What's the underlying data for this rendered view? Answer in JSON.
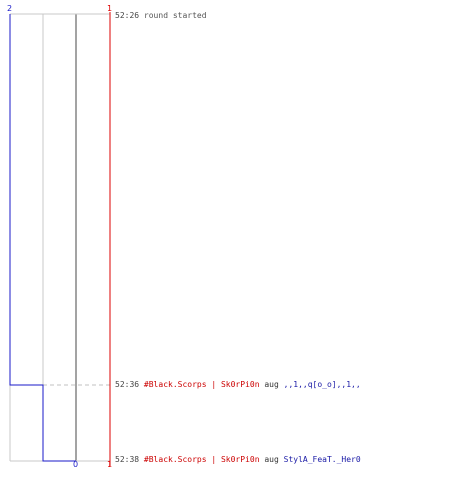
{
  "scale": {
    "left_top_label": "2",
    "bottom_label": "0",
    "right_top_label": "1",
    "right_bottom_label": "1"
  },
  "colors": {
    "blue_team": "#1a1ac8",
    "red_team": "#dd0000",
    "grid": "#c8c8c8",
    "center_line": "#666666",
    "dashed_guide": "#c0c0c0"
  },
  "events": [
    {
      "time": "52:26",
      "text": "round started"
    },
    {
      "time": "52:36",
      "killer": "#Black.Scorps | Sk0rPi0n",
      "action": "aug",
      "victim": ",,1,,q[o_o],,1,,"
    },
    {
      "time": "52:38",
      "killer": "#Black.Scorps | Sk0rPi0n",
      "action": "aug",
      "victim": "StylA_FeaT._Her0"
    }
  ]
}
